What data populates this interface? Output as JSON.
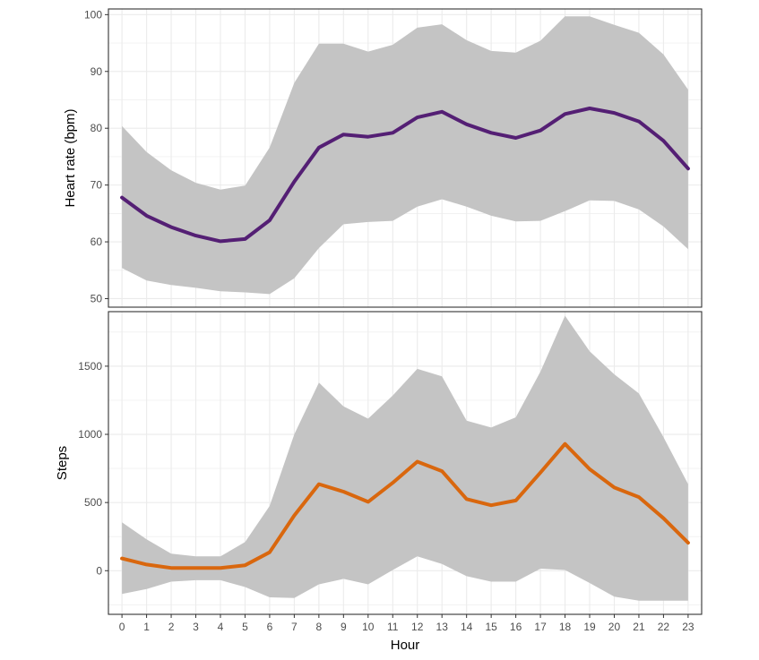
{
  "colors": {
    "heart_rate_line": "#541f74",
    "steps_line": "#d9670e",
    "ribbon": "#c4c4c4",
    "grid": "#ebebeb",
    "panel_border": "#333333"
  },
  "chart_data": [
    {
      "type": "line",
      "ylabel": "Heart rate (bpm)",
      "ylim": [
        48.5,
        101
      ],
      "yticks": [
        50,
        60,
        70,
        80,
        90,
        100
      ],
      "x": [
        0,
        1,
        2,
        3,
        4,
        5,
        6,
        7,
        8,
        9,
        10,
        11,
        12,
        13,
        14,
        15,
        16,
        17,
        18,
        19,
        20,
        21,
        22,
        23
      ],
      "series": [
        {
          "values": [
            67.8,
            64.6,
            62.6,
            61.1,
            60.1,
            60.5,
            63.8,
            70.6,
            76.6,
            78.9,
            78.5,
            79.2,
            81.9,
            82.9,
            80.7,
            79.2,
            78.3,
            79.6,
            82.5,
            83.5,
            82.7,
            81.2,
            77.8,
            72.9
          ]
        }
      ],
      "band_lower": [
        55.4,
        53.2,
        52.4,
        51.9,
        51.3,
        51.1,
        50.8,
        53.6,
        58.9,
        63.1,
        63.5,
        63.7,
        66.2,
        67.5,
        66.2,
        64.6,
        63.6,
        63.7,
        65.4,
        67.3,
        67.2,
        65.7,
        62.7,
        58.7
      ],
      "band_upper": [
        80.4,
        75.8,
        72.6,
        70.4,
        69.2,
        69.9,
        76.6,
        88.0,
        94.9,
        94.9,
        93.5,
        94.7,
        97.7,
        98.3,
        95.5,
        93.6,
        93.3,
        95.4,
        99.7,
        99.7,
        98.2,
        96.8,
        93.0,
        86.8
      ],
      "grid": true
    },
    {
      "type": "line",
      "xlabel": "Hour",
      "ylabel": "Steps",
      "ylim": [
        -320,
        1900
      ],
      "yticks": [
        0,
        500,
        1000,
        1500
      ],
      "x": [
        0,
        1,
        2,
        3,
        4,
        5,
        6,
        7,
        8,
        9,
        10,
        11,
        12,
        13,
        14,
        15,
        16,
        17,
        18,
        19,
        20,
        21,
        22,
        23
      ],
      "series": [
        {
          "values": [
            90,
            45,
            20,
            20,
            20,
            40,
            135,
            405,
            635,
            580,
            505,
            645,
            800,
            730,
            525,
            480,
            515,
            720,
            930,
            745,
            610,
            540,
            385,
            205
          ]
        }
      ],
      "band_lower": [
        -170,
        -135,
        -80,
        -70,
        -70,
        -120,
        -195,
        -200,
        -100,
        -60,
        -100,
        5,
        105,
        50,
        -40,
        -80,
        -80,
        15,
        5,
        -90,
        -190,
        -220,
        -220,
        -220
      ],
      "band_upper": [
        355,
        230,
        125,
        105,
        105,
        210,
        475,
        1000,
        1380,
        1205,
        1115,
        1285,
        1480,
        1425,
        1100,
        1050,
        1125,
        1460,
        1870,
        1610,
        1440,
        1300,
        980,
        635
      ],
      "grid": true
    }
  ]
}
